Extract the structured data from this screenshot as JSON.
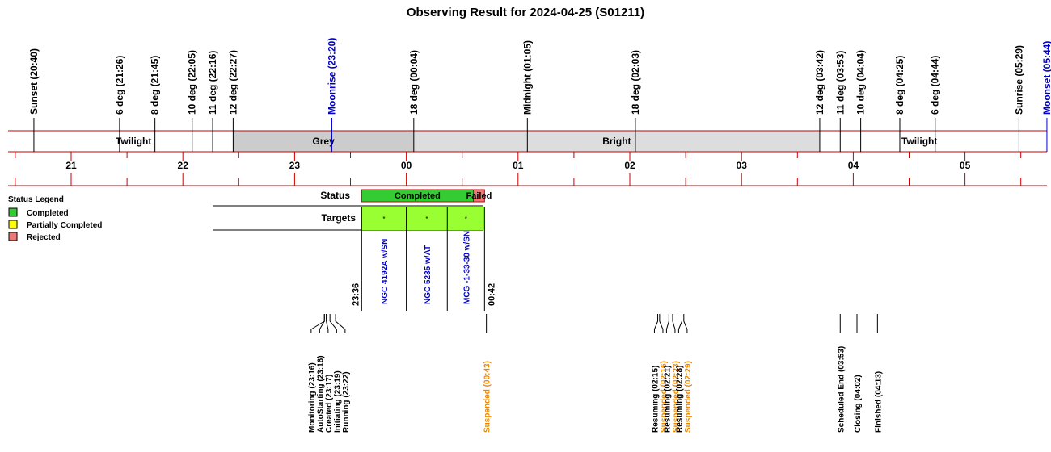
{
  "chart_data": {
    "type": "timeline",
    "title": "Observing Result for 2024-04-25 (S01211)",
    "hours": [
      "21",
      "22",
      "23",
      "00",
      "01",
      "02",
      "03",
      "04",
      "05"
    ],
    "events": [
      {
        "label": "Sunset (20:40)",
        "time": "20:40",
        "color": "#000000"
      },
      {
        "label": "6 deg (21:26)",
        "time": "21:26",
        "color": "#000000"
      },
      {
        "label": "8 deg (21:45)",
        "time": "21:45",
        "color": "#000000"
      },
      {
        "label": "10 deg (22:05)",
        "time": "22:05",
        "color": "#000000"
      },
      {
        "label": "11 deg (22:16)",
        "time": "22:16",
        "color": "#000000"
      },
      {
        "label": "12 deg (22:27)",
        "time": "22:27",
        "color": "#000000"
      },
      {
        "label": "Moonrise (23:20)",
        "time": "23:20",
        "color": "#0000CC"
      },
      {
        "label": "18 deg (00:04)",
        "time": "00:04",
        "color": "#000000"
      },
      {
        "label": "Midnight (01:05)",
        "time": "01:05",
        "color": "#000000"
      },
      {
        "label": "18 deg (02:03)",
        "time": "02:03",
        "color": "#000000"
      },
      {
        "label": "12 deg (03:42)",
        "time": "03:42",
        "color": "#000000"
      },
      {
        "label": "11 deg (03:53)",
        "time": "03:53",
        "color": "#000000"
      },
      {
        "label": "10 deg (04:04)",
        "time": "04:04",
        "color": "#000000"
      },
      {
        "label": "8 deg (04:25)",
        "time": "04:25",
        "color": "#000000"
      },
      {
        "label": "6 deg (04:44)",
        "time": "04:44",
        "color": "#000000"
      },
      {
        "label": "Sunrise (05:29)",
        "time": "05:29",
        "color": "#000000"
      },
      {
        "label": "Moonset (05:44)",
        "time": "05:44",
        "color": "#0000CC"
      }
    ],
    "sky_bands": [
      {
        "label": "Twilight",
        "start": "20:40",
        "end": "22:27",
        "color": "#FFFFFF"
      },
      {
        "label": "Grey",
        "start": "22:27",
        "end": "00:04",
        "color": "#CCCCCC"
      },
      {
        "label": "Bright",
        "start": "00:04",
        "end": "03:42",
        "color": "#DDDDDD"
      },
      {
        "label": "Twilight",
        "start": "03:42",
        "end": "05:29",
        "color": "#FFFFFF"
      }
    ],
    "status_row_label": "Status",
    "status_blocks": [
      {
        "label": "Completed",
        "start": "23:36",
        "end": "00:36",
        "color": "#33CC33"
      },
      {
        "label": "Failed",
        "start": "00:36",
        "end": "00:42",
        "color": "#EE7777"
      }
    ],
    "targets_row_label": "Targets",
    "targets": [
      {
        "name": "NGC 4192A w/SN",
        "mark": "*",
        "start": "23:36",
        "end": "00:00"
      },
      {
        "name": "NGC 5235 w/AT",
        "mark": "*",
        "start": "00:00",
        "end": "00:22"
      },
      {
        "name": "MCG -1-33-30 w/SN",
        "mark": "*",
        "start": "00:22",
        "end": "00:42"
      }
    ],
    "target_color": "#99FF33",
    "target_name_color": "#0000CC",
    "block_start_label": "23:36",
    "block_end_label": "00:42",
    "log_events": [
      {
        "label": "Monitoring (23:16)",
        "time": "23:16",
        "color": "#000000"
      },
      {
        "label": "AutoStarting (23:16)",
        "time": "23:16",
        "color": "#000000"
      },
      {
        "label": "Created (23:17)",
        "time": "23:17",
        "color": "#000000"
      },
      {
        "label": "Initiating (23:19)",
        "time": "23:19",
        "color": "#000000"
      },
      {
        "label": "Running (23:22)",
        "time": "23:22",
        "color": "#000000"
      },
      {
        "label": "Suspended (00:43)",
        "time": "00:43",
        "color": "#EE8800"
      },
      {
        "label": "Resuming (02:15)",
        "time": "02:15",
        "color": "#000000"
      },
      {
        "label": "Suspended (02:16)",
        "time": "02:16",
        "color": "#EE8800"
      },
      {
        "label": "Resuming (02:21)",
        "time": "02:21",
        "color": "#000000"
      },
      {
        "label": "Suspended (02:23)",
        "time": "02:23",
        "color": "#EE8800"
      },
      {
        "label": "Resuming (02:28)",
        "time": "02:28",
        "color": "#000000"
      },
      {
        "label": "Suspended (02:29)",
        "time": "02:29",
        "color": "#EE8800"
      },
      {
        "label": "Scheduled End (03:53)",
        "time": "03:53",
        "color": "#000000"
      },
      {
        "label": "Closing (04:02)",
        "time": "04:02",
        "color": "#000000"
      },
      {
        "label": "Finished (04:13)",
        "time": "04:13",
        "color": "#000000"
      }
    ],
    "legend": {
      "title": "Status Legend",
      "items": [
        {
          "label": "Completed",
          "color": "#33CC33"
        },
        {
          "label": "Partially Completed",
          "color": "#FFFF00"
        },
        {
          "label": "Rejected",
          "color": "#EE7777"
        }
      ]
    },
    "axis_color": "#CC0000"
  }
}
